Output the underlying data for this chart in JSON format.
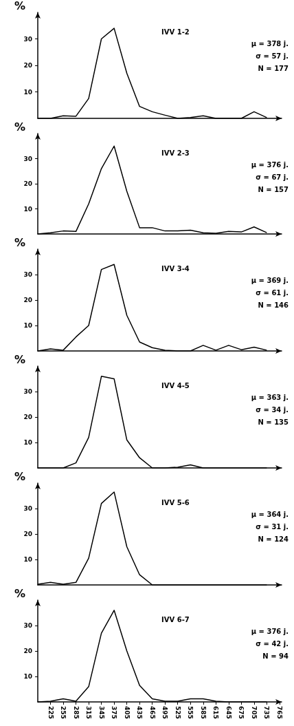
{
  "chart_data": [
    {
      "type": "line",
      "title": "IVV 1-2",
      "ylabel": "%",
      "annotations": [
        "μ = 378 j.",
        "σ = 57 j.",
        "N = 177"
      ],
      "x": [
        195,
        225,
        255,
        285,
        315,
        345,
        375,
        405,
        435,
        465,
        495,
        525,
        555,
        585,
        615,
        645,
        675,
        705,
        735
      ],
      "values": [
        0,
        0,
        1,
        0.8,
        7.5,
        30,
        34,
        17,
        4.5,
        2.5,
        1.2,
        0,
        0.3,
        1,
        0,
        0,
        0,
        2.5,
        0.3
      ],
      "color": "#000000",
      "marker": "none",
      "xlim": [
        195,
        770
      ],
      "xticks": [
        225,
        255,
        285,
        315,
        345,
        375,
        405,
        435,
        465,
        495,
        525,
        555,
        585,
        615,
        645,
        675,
        705,
        735,
        765
      ],
      "ylim": [
        0,
        40
      ],
      "yticks": [
        10,
        20,
        30
      ],
      "tick_labels": "y"
    },
    {
      "type": "line",
      "title": "IVV 2-3",
      "ylabel": "%",
      "annotations": [
        "μ = 376 j.",
        "σ = 67 j.",
        "N = 157"
      ],
      "x": [
        195,
        225,
        255,
        285,
        315,
        345,
        375,
        405,
        435,
        465,
        495,
        525,
        555,
        585,
        615,
        645,
        675,
        705,
        735
      ],
      "values": [
        0,
        0.5,
        1.2,
        1,
        12,
        26,
        35,
        17,
        2.5,
        2.5,
        1.2,
        1.2,
        1.5,
        0.5,
        0.3,
        1,
        0.8,
        2.8,
        0.5
      ],
      "color": "#000000",
      "marker": "none",
      "xlim": [
        195,
        770
      ],
      "xticks": [
        225,
        255,
        285,
        315,
        345,
        375,
        405,
        435,
        465,
        495,
        525,
        555,
        585,
        615,
        645,
        675,
        705,
        735,
        765
      ],
      "ylim": [
        0,
        40
      ],
      "yticks": [
        10,
        20,
        30
      ],
      "tick_labels": "y"
    },
    {
      "type": "line",
      "title": "IVV 3-4",
      "ylabel": "%",
      "annotations": [
        "μ = 369 j.",
        "σ = 61 j.",
        "N = 146"
      ],
      "x": [
        195,
        225,
        255,
        285,
        315,
        345,
        375,
        405,
        435,
        465,
        495,
        525,
        555,
        585,
        615,
        645,
        675,
        705,
        735
      ],
      "values": [
        0,
        0.8,
        0.3,
        5.5,
        10,
        32,
        34,
        14,
        3.5,
        1.3,
        0.3,
        0,
        0,
        2.2,
        0.3,
        2.2,
        0.5,
        1.5,
        0.3
      ],
      "color": "#000000",
      "marker": "none",
      "xlim": [
        195,
        770
      ],
      "xticks": [
        225,
        255,
        285,
        315,
        345,
        375,
        405,
        435,
        465,
        495,
        525,
        555,
        585,
        615,
        645,
        675,
        705,
        735,
        765
      ],
      "ylim": [
        0,
        40
      ],
      "yticks": [
        10,
        20,
        30
      ],
      "tick_labels": "y"
    },
    {
      "type": "line",
      "title": "IVV 4-5",
      "ylabel": "%",
      "annotations": [
        "μ = 363 j.",
        "σ = 34 j.",
        "N = 135"
      ],
      "x": [
        195,
        225,
        255,
        285,
        315,
        345,
        375,
        405,
        435,
        465,
        495,
        525,
        555,
        585,
        615,
        645,
        675,
        705,
        735
      ],
      "values": [
        0,
        0,
        0,
        2,
        12,
        36,
        35,
        11,
        4,
        0,
        0,
        0.3,
        1.2,
        0,
        0,
        0,
        0,
        0,
        0
      ],
      "color": "#000000",
      "marker": "none",
      "xlim": [
        195,
        770
      ],
      "xticks": [
        225,
        255,
        285,
        315,
        345,
        375,
        405,
        435,
        465,
        495,
        525,
        555,
        585,
        615,
        645,
        675,
        705,
        735,
        765
      ],
      "ylim": [
        0,
        40
      ],
      "yticks": [
        10,
        20,
        30
      ],
      "tick_labels": "y"
    },
    {
      "type": "line",
      "title": "IVV 5-6",
      "ylabel": "%",
      "annotations": [
        "μ = 364 j.",
        "σ = 31 j.",
        "N = 124"
      ],
      "x": [
        195,
        225,
        255,
        285,
        315,
        345,
        375,
        405,
        435,
        465,
        495,
        525,
        555,
        585,
        615,
        645,
        675,
        705,
        735
      ],
      "values": [
        0.3,
        1,
        0.3,
        1,
        10.5,
        32,
        36.5,
        15,
        4,
        0,
        0,
        0,
        0,
        0,
        0,
        0,
        0,
        0,
        0
      ],
      "color": "#000000",
      "marker": "none",
      "xlim": [
        195,
        770
      ],
      "xticks": [
        225,
        255,
        285,
        315,
        345,
        375,
        405,
        435,
        465,
        495,
        525,
        555,
        585,
        615,
        645,
        675,
        705,
        735,
        765
      ],
      "ylim": [
        0,
        40
      ],
      "yticks": [
        10,
        20,
        30
      ],
      "tick_labels": "y"
    },
    {
      "type": "line",
      "title": "IVV 6-7",
      "ylabel": "%",
      "annotations": [
        "μ = 376 j.",
        "σ = 42 j.",
        "N = 94"
      ],
      "x": [
        195,
        225,
        255,
        285,
        315,
        345,
        375,
        405,
        435,
        465,
        495,
        525,
        555,
        585,
        615,
        645,
        675,
        705,
        735
      ],
      "values": [
        0,
        0.3,
        1.2,
        0.3,
        6,
        27,
        36,
        20,
        6.5,
        1.2,
        0.3,
        0.3,
        1.2,
        1.2,
        0.3,
        0,
        0,
        0,
        0
      ],
      "color": "#000000",
      "marker": "none",
      "xlim": [
        195,
        770
      ],
      "xticks": [
        225,
        255,
        285,
        315,
        345,
        375,
        405,
        435,
        465,
        495,
        525,
        555,
        585,
        615,
        645,
        675,
        705,
        735,
        765
      ],
      "ylim": [
        0,
        40
      ],
      "yticks": [
        10,
        20,
        30
      ]
    }
  ]
}
